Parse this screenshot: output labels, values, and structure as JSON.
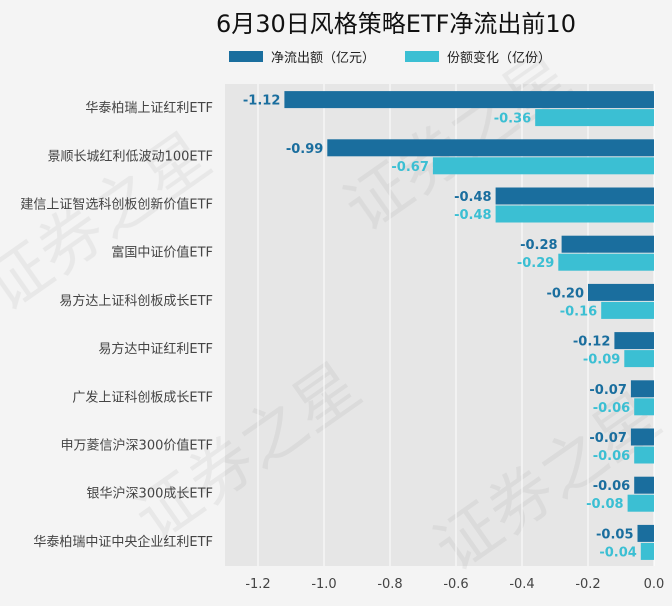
{
  "chart_data": {
    "type": "bar",
    "orientation": "horizontal",
    "title": "6月30日风格策略ETF净流出前10",
    "categories": [
      "华泰柏瑞上证红利ETF",
      "景顺长城红利低波动100ETF",
      "建信上证智选科创板创新价值ETF",
      "富国中证价值ETF",
      "易方达上证科创板成长ETF",
      "易方达中证红利ETF",
      "广发上证科创板成长ETF",
      "申万菱信沪深300价值ETF",
      "银华沪深300成长ETF",
      "华泰柏瑞中证中央企业红利ETF"
    ],
    "series": [
      {
        "name": "净流出额（亿元）",
        "color": "#1a6e9e",
        "values": [
          -1.12,
          -0.99,
          -0.48,
          -0.28,
          -0.2,
          -0.12,
          -0.07,
          -0.07,
          -0.06,
          -0.05
        ],
        "labels": [
          "-1.12",
          "-0.99",
          "-0.48",
          "-0.28",
          "-0.20",
          "-0.12",
          "-0.07",
          "-0.07",
          "-0.06",
          "-0.05"
        ]
      },
      {
        "name": "份额变化（亿份）",
        "color": "#3bbfd3",
        "values": [
          -0.36,
          -0.67,
          -0.48,
          -0.29,
          -0.16,
          -0.09,
          -0.06,
          -0.06,
          -0.08,
          -0.04
        ],
        "labels": [
          "-0.36",
          "-0.67",
          "-0.48",
          "-0.29",
          "-0.16",
          "-0.09",
          "-0.06",
          "-0.06",
          "-0.08",
          "-0.04"
        ]
      }
    ],
    "xlim": [
      -1.3,
      0.0
    ],
    "xticks": [
      -1.2,
      -1.0,
      -0.8,
      -0.6,
      -0.4,
      -0.2,
      0.0
    ],
    "xtick_labels": [
      "-1.2",
      "-1.0",
      "-0.8",
      "-0.6",
      "-0.4",
      "-0.2",
      "0.0"
    ],
    "grid": true,
    "legend_position": "top",
    "plot_background": "#e6e6e6",
    "watermark": "证券之星"
  }
}
